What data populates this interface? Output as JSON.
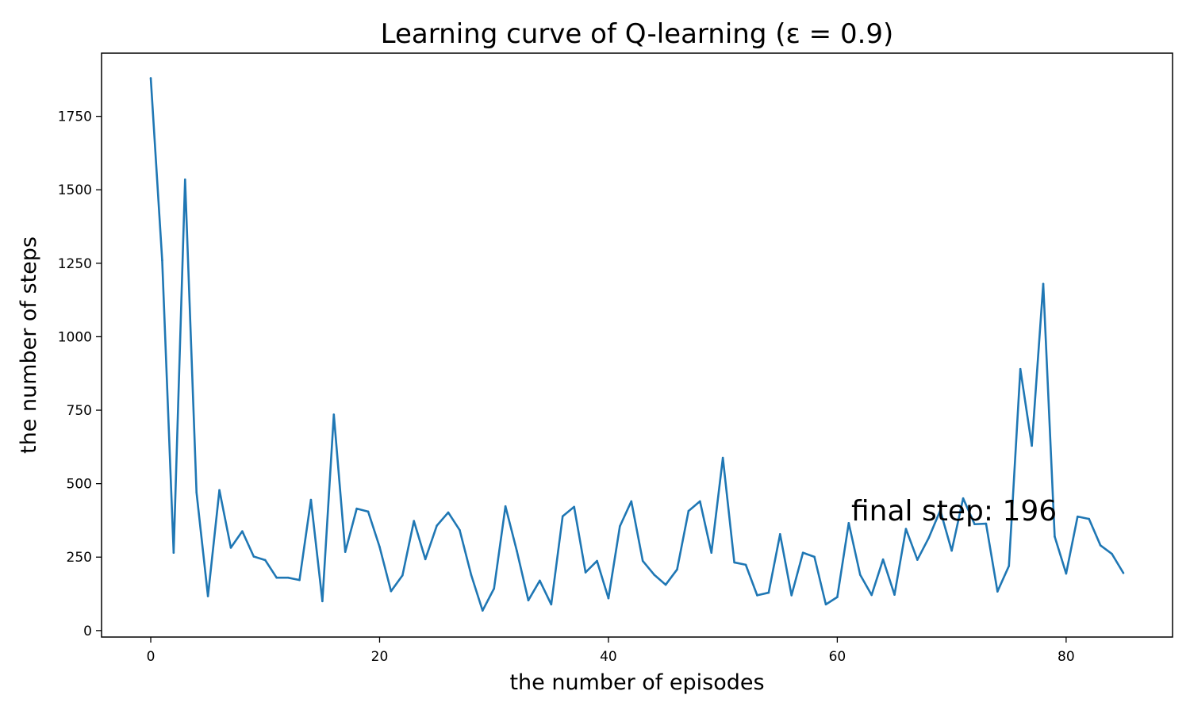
{
  "chart_data": {
    "type": "line",
    "title": "Learning curve of Q-learning (ε = 0.9)",
    "xlabel": "the number of episodes",
    "ylabel": "the number of steps",
    "xlim": [
      -4.3,
      89.3
    ],
    "ylim": [
      -22,
      1965
    ],
    "grid": false,
    "x_ticks": [
      0,
      20,
      40,
      60,
      80
    ],
    "y_ticks": [
      0,
      250,
      500,
      750,
      1000,
      1250,
      1500,
      1750
    ],
    "series_color": "#1f77b4",
    "series": [
      {
        "values": [
          1880,
          1260,
          265,
          1535,
          470,
          117,
          478,
          282,
          338,
          252,
          240,
          180,
          180,
          172,
          445,
          100,
          735,
          268,
          415,
          405,
          285,
          134,
          188,
          373,
          243,
          357,
          402,
          342,
          190,
          68,
          143,
          423,
          270,
          103,
          170,
          89,
          389,
          421,
          198,
          237,
          110,
          355,
          440,
          237,
          190,
          156,
          208,
          407,
          440,
          265,
          588,
          232,
          224,
          120,
          129,
          328,
          120,
          265,
          251,
          89,
          114,
          366,
          190,
          121,
          242,
          122,
          346,
          241,
          316,
          409,
          272,
          450,
          362,
          364,
          133,
          220,
          890,
          629,
          1180,
          320,
          194,
          388,
          380,
          290,
          261,
          196
        ]
      }
    ],
    "annotation": "final step: 196"
  }
}
